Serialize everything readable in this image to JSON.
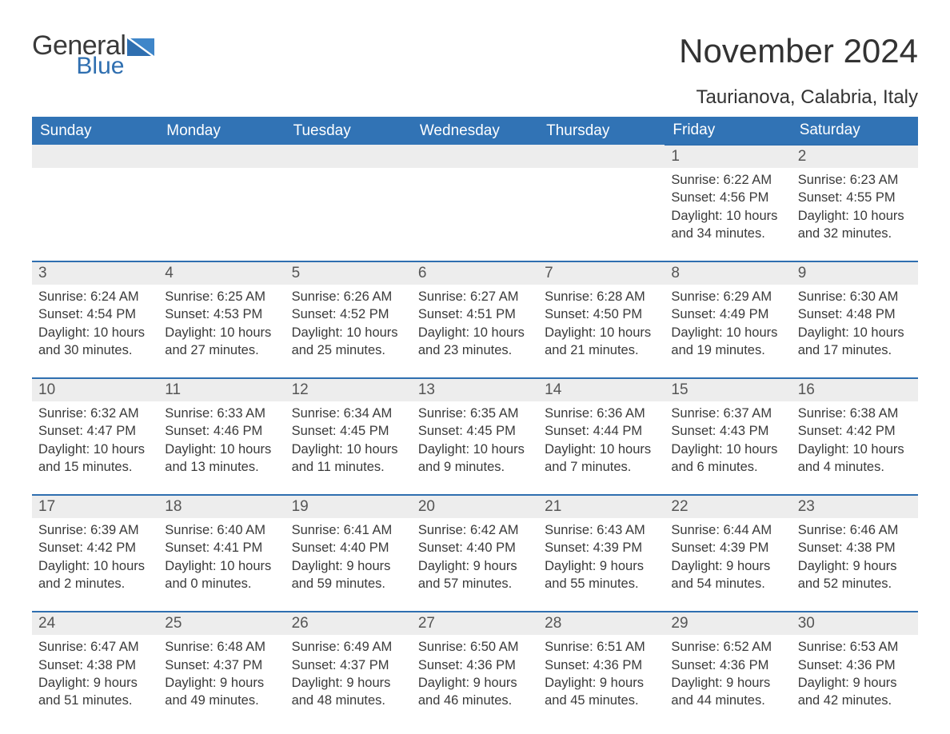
{
  "brand": {
    "part1": "General",
    "part2": "Blue",
    "color_text": "#3a3a3a",
    "color_blue": "#2f6fb0"
  },
  "title": "November 2024",
  "location": "Taurianova, Calabria, Italy",
  "colors": {
    "header_bg": "#3173b5",
    "header_text": "#ffffff",
    "daynum_bg": "#ededed",
    "daynum_border": "#2f6fb0",
    "body_text": "#3a3a3a",
    "background": "#ffffff"
  },
  "typography": {
    "title_fontsize": 42,
    "location_fontsize": 24,
    "header_fontsize": 19,
    "daynum_fontsize": 19,
    "cell_fontsize": 16.5
  },
  "day_headers": [
    "Sunday",
    "Monday",
    "Tuesday",
    "Wednesday",
    "Thursday",
    "Friday",
    "Saturday"
  ],
  "labels": {
    "sunrise": "Sunrise:",
    "sunset": "Sunset:",
    "daylight": "Daylight:"
  },
  "weeks": [
    [
      null,
      null,
      null,
      null,
      null,
      {
        "n": "1",
        "sunrise": "6:22 AM",
        "sunset": "4:56 PM",
        "daylight": "10 hours and 34 minutes."
      },
      {
        "n": "2",
        "sunrise": "6:23 AM",
        "sunset": "4:55 PM",
        "daylight": "10 hours and 32 minutes."
      }
    ],
    [
      {
        "n": "3",
        "sunrise": "6:24 AM",
        "sunset": "4:54 PM",
        "daylight": "10 hours and 30 minutes."
      },
      {
        "n": "4",
        "sunrise": "6:25 AM",
        "sunset": "4:53 PM",
        "daylight": "10 hours and 27 minutes."
      },
      {
        "n": "5",
        "sunrise": "6:26 AM",
        "sunset": "4:52 PM",
        "daylight": "10 hours and 25 minutes."
      },
      {
        "n": "6",
        "sunrise": "6:27 AM",
        "sunset": "4:51 PM",
        "daylight": "10 hours and 23 minutes."
      },
      {
        "n": "7",
        "sunrise": "6:28 AM",
        "sunset": "4:50 PM",
        "daylight": "10 hours and 21 minutes."
      },
      {
        "n": "8",
        "sunrise": "6:29 AM",
        "sunset": "4:49 PM",
        "daylight": "10 hours and 19 minutes."
      },
      {
        "n": "9",
        "sunrise": "6:30 AM",
        "sunset": "4:48 PM",
        "daylight": "10 hours and 17 minutes."
      }
    ],
    [
      {
        "n": "10",
        "sunrise": "6:32 AM",
        "sunset": "4:47 PM",
        "daylight": "10 hours and 15 minutes."
      },
      {
        "n": "11",
        "sunrise": "6:33 AM",
        "sunset": "4:46 PM",
        "daylight": "10 hours and 13 minutes."
      },
      {
        "n": "12",
        "sunrise": "6:34 AM",
        "sunset": "4:45 PM",
        "daylight": "10 hours and 11 minutes."
      },
      {
        "n": "13",
        "sunrise": "6:35 AM",
        "sunset": "4:45 PM",
        "daylight": "10 hours and 9 minutes."
      },
      {
        "n": "14",
        "sunrise": "6:36 AM",
        "sunset": "4:44 PM",
        "daylight": "10 hours and 7 minutes."
      },
      {
        "n": "15",
        "sunrise": "6:37 AM",
        "sunset": "4:43 PM",
        "daylight": "10 hours and 6 minutes."
      },
      {
        "n": "16",
        "sunrise": "6:38 AM",
        "sunset": "4:42 PM",
        "daylight": "10 hours and 4 minutes."
      }
    ],
    [
      {
        "n": "17",
        "sunrise": "6:39 AM",
        "sunset": "4:42 PM",
        "daylight": "10 hours and 2 minutes."
      },
      {
        "n": "18",
        "sunrise": "6:40 AM",
        "sunset": "4:41 PM",
        "daylight": "10 hours and 0 minutes."
      },
      {
        "n": "19",
        "sunrise": "6:41 AM",
        "sunset": "4:40 PM",
        "daylight": "9 hours and 59 minutes."
      },
      {
        "n": "20",
        "sunrise": "6:42 AM",
        "sunset": "4:40 PM",
        "daylight": "9 hours and 57 minutes."
      },
      {
        "n": "21",
        "sunrise": "6:43 AM",
        "sunset": "4:39 PM",
        "daylight": "9 hours and 55 minutes."
      },
      {
        "n": "22",
        "sunrise": "6:44 AM",
        "sunset": "4:39 PM",
        "daylight": "9 hours and 54 minutes."
      },
      {
        "n": "23",
        "sunrise": "6:46 AM",
        "sunset": "4:38 PM",
        "daylight": "9 hours and 52 minutes."
      }
    ],
    [
      {
        "n": "24",
        "sunrise": "6:47 AM",
        "sunset": "4:38 PM",
        "daylight": "9 hours and 51 minutes."
      },
      {
        "n": "25",
        "sunrise": "6:48 AM",
        "sunset": "4:37 PM",
        "daylight": "9 hours and 49 minutes."
      },
      {
        "n": "26",
        "sunrise": "6:49 AM",
        "sunset": "4:37 PM",
        "daylight": "9 hours and 48 minutes."
      },
      {
        "n": "27",
        "sunrise": "6:50 AM",
        "sunset": "4:36 PM",
        "daylight": "9 hours and 46 minutes."
      },
      {
        "n": "28",
        "sunrise": "6:51 AM",
        "sunset": "4:36 PM",
        "daylight": "9 hours and 45 minutes."
      },
      {
        "n": "29",
        "sunrise": "6:52 AM",
        "sunset": "4:36 PM",
        "daylight": "9 hours and 44 minutes."
      },
      {
        "n": "30",
        "sunrise": "6:53 AM",
        "sunset": "4:36 PM",
        "daylight": "9 hours and 42 minutes."
      }
    ]
  ]
}
